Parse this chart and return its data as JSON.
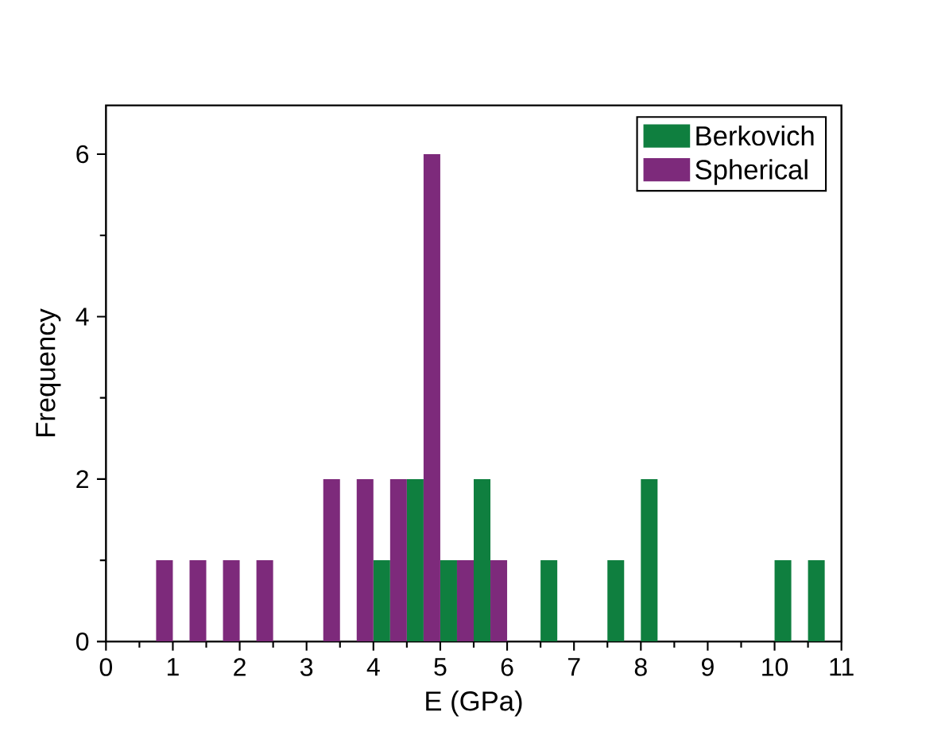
{
  "chart_data": {
    "type": "bar",
    "xlabel": "E (GPa)",
    "ylabel": "Frequency",
    "xlim": [
      0,
      11
    ],
    "xticks": [
      0,
      1,
      2,
      3,
      4,
      5,
      6,
      7,
      8,
      9,
      10,
      11
    ],
    "ylim": [
      0,
      6.6
    ],
    "yticks": [
      0,
      2,
      4,
      6
    ],
    "grid": false,
    "legend": "top right",
    "series": [
      {
        "name": "Berkovich",
        "color": "#0f7f3f",
        "x": [
          4.125,
          4.625,
          5.125,
          5.625,
          6.625,
          7.625,
          8.125,
          10.125,
          10.625
        ],
        "values": [
          1,
          2,
          1,
          2,
          1,
          1,
          2,
          1,
          1
        ]
      },
      {
        "name": "Spherical",
        "color": "#7d2a7b",
        "x": [
          0.875,
          1.375,
          1.875,
          2.375,
          3.375,
          3.875,
          4.375,
          4.875,
          5.375,
          5.875
        ],
        "values": [
          1,
          1,
          1,
          1,
          2,
          2,
          2,
          6,
          1,
          1
        ]
      }
    ]
  }
}
